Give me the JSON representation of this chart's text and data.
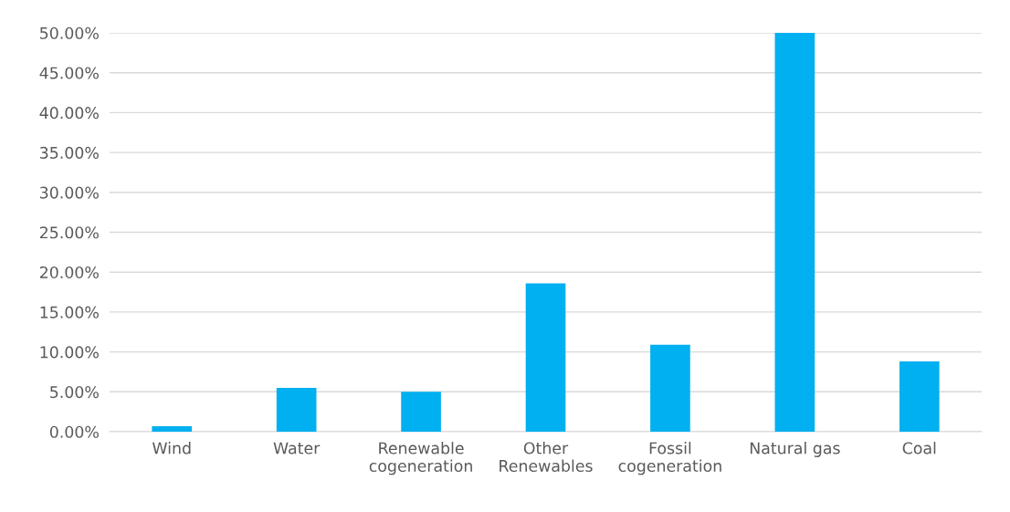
{
  "chart_data": {
    "type": "bar",
    "categories": [
      "Wind",
      "Water",
      "Renewable\ncogeneration",
      "Other\nRenewables",
      "Fossil\ncogeneration",
      "Natural gas",
      "Coal"
    ],
    "values": [
      0.7,
      5.5,
      5.0,
      18.6,
      10.9,
      50.0,
      8.8
    ],
    "color": "#00b0f0",
    "ylim": [
      0,
      50
    ],
    "yticks": [
      {
        "value": 0,
        "label": "0.00%"
      },
      {
        "value": 5,
        "label": "5.00%"
      },
      {
        "value": 10,
        "label": "10.00%"
      },
      {
        "value": 15,
        "label": "15.00%"
      },
      {
        "value": 20,
        "label": "20.00%"
      },
      {
        "value": 25,
        "label": "25.00%"
      },
      {
        "value": 30,
        "label": "30.00%"
      },
      {
        "value": 35,
        "label": "35.00%"
      },
      {
        "value": 40,
        "label": "40.00%"
      },
      {
        "value": 45,
        "label": "45.00%"
      },
      {
        "value": 50,
        "label": "50.00%"
      }
    ],
    "grid": "y"
  }
}
